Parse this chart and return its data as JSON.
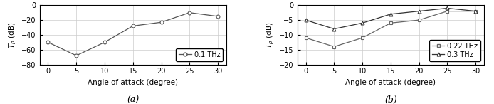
{
  "x": [
    0,
    5,
    10,
    15,
    20,
    25,
    30
  ],
  "panel_a": {
    "label": "0.1 THz",
    "values": [
      -50,
      -68,
      -50,
      -28,
      -23,
      -10,
      -15
    ],
    "marker": "o",
    "color": "#555555",
    "ylim": [
      -80,
      0
    ],
    "yticks": [
      0,
      -20,
      -40,
      -60,
      -80
    ],
    "xlabel": "Angle of attack (degree)",
    "sublabel": "(a)"
  },
  "panel_b": {
    "series": [
      {
        "label": "0.22 THz",
        "values": [
          -11,
          -14,
          -11,
          -6,
          -5,
          -2,
          -2
        ],
        "marker": "s",
        "color": "#666666"
      },
      {
        "label": "0.3 THz",
        "values": [
          -5,
          -8,
          -6,
          -3,
          -2,
          -1,
          -2
        ],
        "marker": "^",
        "color": "#333333"
      }
    ],
    "ylim": [
      -20,
      0
    ],
    "yticks": [
      0,
      -5,
      -10,
      -15,
      -20
    ],
    "xlabel": "Angle of attack (degree)",
    "sublabel": "(b)"
  },
  "xticks": [
    0,
    5,
    10,
    15,
    20,
    25,
    30
  ],
  "grid_color": "#cccccc",
  "background_color": "#ffffff",
  "font_size": 7.5,
  "legend_font_size": 7,
  "sublabel_font_size": 9
}
